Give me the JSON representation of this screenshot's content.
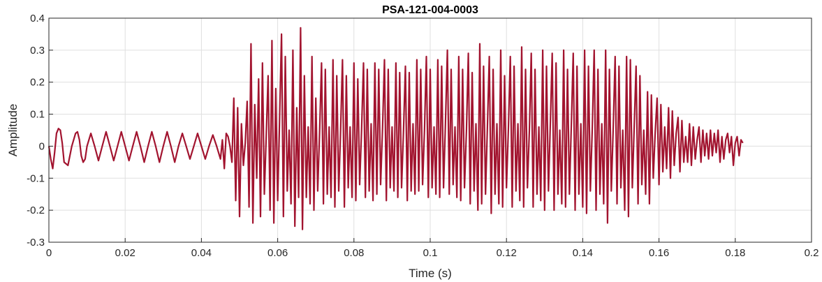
{
  "chart_data": {
    "type": "line",
    "title": "PSA-121-004-0003",
    "xlabel": "Time (s)",
    "ylabel": "Amplitude",
    "xlim": [
      0,
      0.2
    ],
    "ylim": [
      -0.3,
      0.4
    ],
    "x_ticks": [
      0,
      0.02,
      0.04,
      0.06,
      0.08,
      0.1,
      0.12,
      0.14,
      0.16,
      0.18,
      0.2
    ],
    "x_tick_labels": [
      "0",
      "0.02",
      "0.04",
      "0.06",
      "0.08",
      "0.1",
      "0.12",
      "0.14",
      "0.16",
      "0.18",
      "0.2"
    ],
    "y_ticks": [
      -0.3,
      -0.2,
      -0.1,
      0,
      0.1,
      0.2,
      0.3,
      0.4
    ],
    "y_tick_labels": [
      "-0.3",
      "-0.2",
      "-0.1",
      "0",
      "0.1",
      "0.2",
      "0.3",
      "0.4"
    ],
    "grid": true,
    "line_color": "#A2142F",
    "series": [
      {
        "x": [
          0,
          0.0005,
          0.001,
          0.0015,
          0.002,
          0.0025,
          0.003,
          0.0035,
          0.004,
          0.005,
          0.006,
          0.007,
          0.0075,
          0.008,
          0.0085,
          0.009,
          0.0095,
          0.01,
          0.011,
          0.012,
          0.013,
          0.014,
          0.015,
          0.016,
          0.017,
          0.018,
          0.019,
          0.02,
          0.021,
          0.022,
          0.023,
          0.024,
          0.025,
          0.026,
          0.027,
          0.028,
          0.029,
          0.03,
          0.031,
          0.032,
          0.033,
          0.034,
          0.035,
          0.036,
          0.037,
          0.038,
          0.039,
          0.04,
          0.041,
          0.042,
          0.043,
          0.044,
          0.045,
          0.0455,
          0.046,
          0.0465,
          0.047,
          0.0475,
          0.048,
          0.0485,
          0.049,
          0.0495,
          0.05,
          0.0505,
          0.051,
          0.0515,
          0.052,
          0.0525,
          0.053,
          0.0535,
          0.054,
          0.0545,
          0.055,
          0.0555,
          0.056,
          0.0565,
          0.057,
          0.0575,
          0.058,
          0.0585,
          0.059,
          0.0595,
          0.06,
          0.0605,
          0.061,
          0.0615,
          0.062,
          0.0625,
          0.063,
          0.0635,
          0.064,
          0.0645,
          0.065,
          0.0655,
          0.066,
          0.0665,
          0.067,
          0.0675,
          0.068,
          0.0685,
          0.069,
          0.0695,
          0.07,
          0.0705,
          0.071,
          0.0715,
          0.072,
          0.0725,
          0.073,
          0.0735,
          0.074,
          0.0745,
          0.075,
          0.0755,
          0.076,
          0.0765,
          0.077,
          0.0775,
          0.078,
          0.0785,
          0.079,
          0.0795,
          0.08,
          0.0805,
          0.081,
          0.0815,
          0.082,
          0.0825,
          0.083,
          0.0835,
          0.084,
          0.0845,
          0.085,
          0.0855,
          0.086,
          0.0865,
          0.087,
          0.0875,
          0.088,
          0.0885,
          0.089,
          0.0895,
          0.09,
          0.0905,
          0.091,
          0.0915,
          0.092,
          0.0925,
          0.093,
          0.0935,
          0.094,
          0.0945,
          0.095,
          0.0955,
          0.096,
          0.0965,
          0.097,
          0.0975,
          0.098,
          0.0985,
          0.099,
          0.0995,
          0.1,
          0.1005,
          0.101,
          0.1015,
          0.102,
          0.1025,
          0.103,
          0.1035,
          0.104,
          0.1045,
          0.105,
          0.1055,
          0.106,
          0.1065,
          0.107,
          0.1075,
          0.108,
          0.1085,
          0.109,
          0.1095,
          0.11,
          0.1105,
          0.111,
          0.1115,
          0.112,
          0.1125,
          0.113,
          0.1135,
          0.114,
          0.1145,
          0.115,
          0.1155,
          0.116,
          0.1165,
          0.117,
          0.1175,
          0.118,
          0.1185,
          0.119,
          0.1195,
          0.12,
          0.1205,
          0.121,
          0.1215,
          0.122,
          0.1225,
          0.123,
          0.1235,
          0.124,
          0.1245,
          0.125,
          0.1255,
          0.126,
          0.1265,
          0.127,
          0.1275,
          0.128,
          0.1285,
          0.129,
          0.1295,
          0.13,
          0.1305,
          0.131,
          0.1315,
          0.132,
          0.1325,
          0.133,
          0.1335,
          0.134,
          0.1345,
          0.135,
          0.1355,
          0.136,
          0.1365,
          0.137,
          0.1375,
          0.138,
          0.1385,
          0.139,
          0.1395,
          0.14,
          0.1405,
          0.141,
          0.1415,
          0.142,
          0.1425,
          0.143,
          0.1435,
          0.144,
          0.1445,
          0.145,
          0.1455,
          0.146,
          0.1465,
          0.147,
          0.1475,
          0.148,
          0.1485,
          0.149,
          0.1495,
          0.15,
          0.1505,
          0.151,
          0.1515,
          0.152,
          0.1525,
          0.153,
          0.1535,
          0.154,
          0.1545,
          0.155,
          0.1555,
          0.156,
          0.1565,
          0.157,
          0.1575,
          0.158,
          0.1585,
          0.159,
          0.1595,
          0.16,
          0.1605,
          0.161,
          0.1615,
          0.162,
          0.1625,
          0.163,
          0.1635,
          0.164,
          0.1645,
          0.165,
          0.1655,
          0.166,
          0.1665,
          0.167,
          0.1675,
          0.168,
          0.1685,
          0.169,
          0.1695,
          0.17,
          0.1705,
          0.171,
          0.1715,
          0.172,
          0.1725,
          0.173,
          0.1735,
          0.174,
          0.1745,
          0.175,
          0.1755,
          0.176,
          0.1765,
          0.177,
          0.1775,
          0.178,
          0.1785,
          0.179,
          0.1795,
          0.18,
          0.1805,
          0.181,
          0.1815,
          0.182
        ],
        "y": [
          0.0,
          -0.04,
          -0.07,
          -0.02,
          0.04,
          0.055,
          0.05,
          0.01,
          -0.05,
          -0.06,
          0.0,
          0.04,
          0.045,
          0.02,
          -0.03,
          -0.05,
          -0.04,
          0.0,
          0.04,
          0.0,
          -0.045,
          0.0,
          0.045,
          0.0,
          -0.045,
          0.0,
          0.045,
          0.0,
          -0.045,
          0.0,
          0.045,
          0.0,
          -0.05,
          0.0,
          0.045,
          0.0,
          -0.05,
          0.0,
          0.045,
          0.0,
          -0.05,
          0.0,
          0.04,
          0.0,
          -0.04,
          0.0,
          0.04,
          0.0,
          -0.04,
          0.0,
          0.035,
          0.0,
          -0.04,
          0.02,
          -0.07,
          0.04,
          0.03,
          0.0,
          -0.05,
          0.15,
          -0.17,
          0.12,
          -0.22,
          0.07,
          -0.06,
          0.01,
          0.14,
          -0.19,
          0.32,
          -0.24,
          0.13,
          -0.1,
          0.21,
          -0.22,
          0.26,
          -0.15,
          0.03,
          0.22,
          -0.2,
          0.33,
          -0.24,
          0.18,
          -0.17,
          0.08,
          0.35,
          -0.22,
          0.28,
          -0.14,
          0.05,
          -0.18,
          0.3,
          -0.25,
          0.12,
          -0.16,
          0.37,
          -0.26,
          0.22,
          -0.16,
          0.06,
          -0.18,
          0.28,
          -0.2,
          0.15,
          -0.14,
          0.05,
          0.26,
          -0.18,
          0.24,
          -0.15,
          0.06,
          -0.16,
          0.27,
          -0.19,
          0.22,
          -0.14,
          0.05,
          0.27,
          -0.19,
          0.22,
          -0.13,
          0.06,
          -0.16,
          0.26,
          -0.17,
          0.21,
          -0.12,
          0.05,
          0.26,
          -0.16,
          0.24,
          -0.14,
          0.07,
          -0.17,
          0.26,
          -0.15,
          0.24,
          -0.12,
          0.06,
          0.27,
          -0.17,
          0.24,
          -0.13,
          0.06,
          -0.14,
          0.26,
          -0.16,
          0.23,
          -0.13,
          0.05,
          0.25,
          -0.17,
          0.23,
          -0.14,
          0.07,
          -0.15,
          0.27,
          -0.14,
          0.24,
          -0.12,
          0.05,
          0.28,
          -0.16,
          0.24,
          -0.13,
          0.06,
          -0.15,
          0.27,
          -0.16,
          0.25,
          -0.13,
          0.07,
          0.3,
          -0.15,
          0.24,
          -0.12,
          0.06,
          -0.16,
          0.28,
          -0.17,
          0.24,
          -0.13,
          0.05,
          0.29,
          -0.18,
          0.23,
          -0.14,
          0.07,
          -0.2,
          0.32,
          -0.18,
          0.25,
          -0.15,
          0.06,
          0.28,
          -0.21,
          0.24,
          -0.15,
          0.07,
          -0.18,
          0.3,
          -0.19,
          0.22,
          -0.13,
          0.05,
          0.28,
          -0.19,
          0.25,
          -0.14,
          0.07,
          -0.17,
          0.31,
          -0.19,
          0.24,
          -0.13,
          0.05,
          0.29,
          -0.19,
          0.24,
          -0.15,
          0.06,
          -0.17,
          0.3,
          -0.2,
          0.25,
          -0.14,
          0.07,
          0.29,
          -0.2,
          0.26,
          -0.15,
          0.05,
          -0.18,
          0.3,
          -0.19,
          0.24,
          -0.15,
          0.06,
          0.29,
          -0.2,
          0.25,
          -0.15,
          0.07,
          -0.19,
          0.3,
          -0.21,
          0.25,
          -0.14,
          0.05,
          0.3,
          -0.2,
          0.24,
          -0.15,
          0.07,
          -0.18,
          0.3,
          -0.24,
          0.24,
          -0.14,
          0.06,
          0.28,
          -0.18,
          0.25,
          -0.13,
          0.05,
          -0.2,
          0.28,
          -0.22,
          0.27,
          -0.13,
          0.06,
          0.25,
          -0.18,
          0.22,
          -0.12,
          0.05,
          -0.15,
          0.17,
          -0.18,
          0.16,
          -0.1,
          0.04,
          0.15,
          -0.12,
          0.13,
          -0.08,
          0.06,
          -0.07,
          0.12,
          -0.1,
          0.11,
          -0.06,
          0.04,
          0.09,
          -0.08,
          0.08,
          -0.05,
          0.03,
          -0.05,
          0.07,
          -0.06,
          0.06,
          -0.04,
          0.02,
          0.06,
          -0.05,
          0.05,
          -0.03,
          0.04,
          -0.04,
          0.05,
          -0.03,
          0.04,
          -0.02,
          0.05,
          -0.05,
          0.03,
          -0.04,
          0.02,
          0.04,
          -0.02,
          0.03,
          -0.06,
          0.01,
          0.03,
          -0.03,
          0.02,
          0.01
        ]
      }
    ]
  }
}
